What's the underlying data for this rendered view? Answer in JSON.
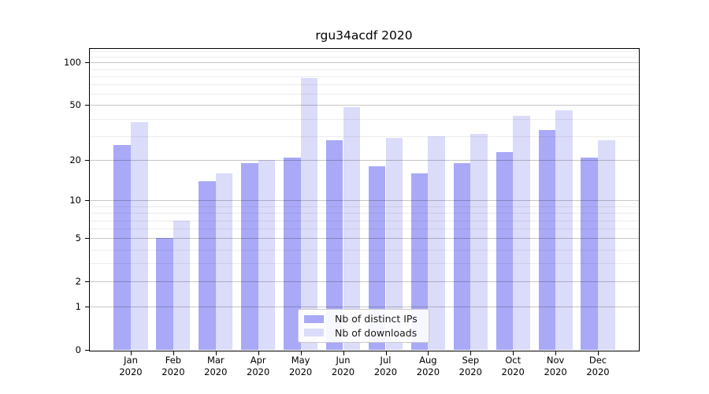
{
  "chart_data": {
    "type": "bar",
    "title": "rgu34acdf 2020",
    "categories": [
      "Jan 2020",
      "Feb 2020",
      "Mar 2020",
      "Apr 2020",
      "May 2020",
      "Jun 2020",
      "Jul 2020",
      "Aug 2020",
      "Sep 2020",
      "Oct 2020",
      "Nov 2020",
      "Dec 2020"
    ],
    "series": [
      {
        "name": "Nb of distinct IPs",
        "color": "#a9a9f7",
        "values": [
          26,
          5,
          14,
          19,
          21,
          28,
          18,
          16,
          19,
          23,
          33,
          21
        ]
      },
      {
        "name": "Nb of downloads",
        "color": "#dbdbfa",
        "values": [
          38,
          7,
          16,
          20,
          78,
          48,
          29,
          30,
          31,
          42,
          46,
          28
        ]
      }
    ],
    "xlabel": "",
    "ylabel": "",
    "yscale": "log10(value+1)",
    "ylim": [
      0,
      127
    ],
    "yticks": [
      0,
      1,
      2,
      5,
      10,
      20,
      50,
      100
    ],
    "yticks_minor": [
      3,
      4,
      6,
      7,
      8,
      9,
      30,
      40,
      60,
      70,
      80,
      90,
      110,
      120
    ],
    "grid": "on",
    "legend_position": "lower center"
  }
}
